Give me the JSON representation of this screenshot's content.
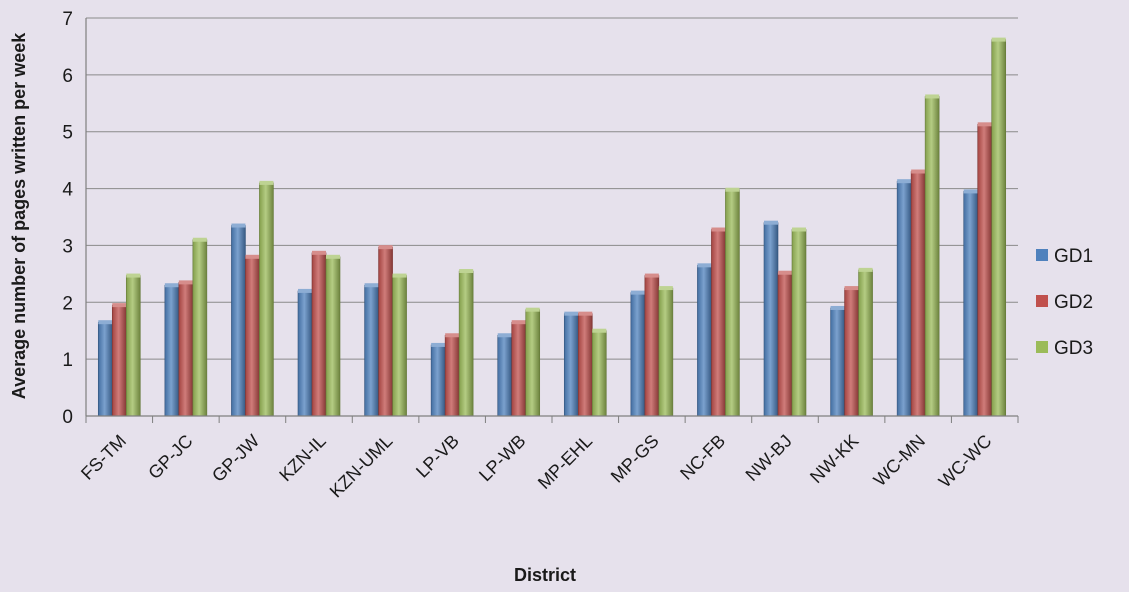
{
  "chart_data": {
    "type": "bar",
    "title": "",
    "xlabel": "District",
    "ylabel": "Average number of pages written per week",
    "ylim": [
      0,
      7
    ],
    "yticks": [
      "0",
      "1",
      "2",
      "3",
      "4",
      "5",
      "6",
      "7"
    ],
    "grid": true,
    "legend_position": "right",
    "categories": [
      "FS-TM",
      "GP-JC",
      "GP-JW",
      "KZN-IL",
      "KZN-UML",
      "LP-VB",
      "LP-WB",
      "MP-EHL",
      "MP-GS",
      "NC-FB",
      "NW-BJ",
      "NW-KK",
      "WC-MN",
      "WC-WC"
    ],
    "series": [
      {
        "name": "GD1",
        "color": "#4f81bd",
        "values": [
          1.65,
          2.3,
          3.35,
          2.2,
          2.3,
          1.25,
          1.42,
          1.8,
          2.17,
          2.65,
          3.4,
          1.9,
          4.13,
          3.95
        ]
      },
      {
        "name": "GD2",
        "color": "#c0504d",
        "values": [
          1.95,
          2.35,
          2.8,
          2.87,
          2.97,
          1.42,
          1.65,
          1.8,
          2.47,
          3.28,
          2.52,
          2.25,
          4.3,
          5.13
        ]
      },
      {
        "name": "GD3",
        "color": "#9bbb59",
        "values": [
          2.47,
          3.1,
          4.1,
          2.8,
          2.47,
          2.55,
          1.87,
          1.5,
          2.25,
          3.98,
          3.28,
          2.57,
          5.62,
          6.62
        ]
      }
    ]
  }
}
